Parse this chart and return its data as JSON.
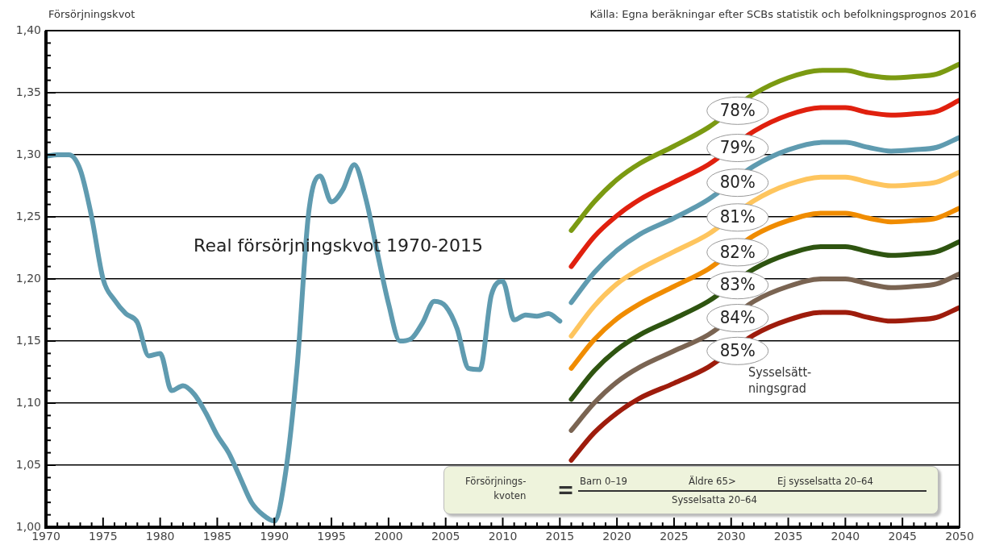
{
  "chart_data": {
    "type": "line",
    "ylabel": "Försörjningskvot",
    "legend_title": "Sysselsätt-\nningsgrad",
    "annotations": [
      "Källa: Egna beräkningar efter SCBs statistik och befolkningsprognos 2016",
      "Försörjnings-\nkvoten",
      "=",
      "Barn 0–19",
      "Äldre 65>",
      "Ej sysselsatta 20–64",
      "Sysselsatta 20–64"
    ],
    "xlim": [
      1970,
      2050
    ],
    "xticks": [
      1970,
      {
        "value": 1971,
        "label": null
      },
      {
        "value": 1972,
        "label": null
      },
      {
        "value": 1973,
        "label": null
      },
      {
        "value": 1974,
        "label": null
      },
      1975,
      {
        "value": 1976,
        "label": null
      },
      {
        "value": 1977,
        "label": null
      },
      {
        "value": 1978,
        "label": null
      },
      {
        "value": 1979,
        "label": null
      },
      1980,
      {
        "value": 1981,
        "label": null
      },
      {
        "value": 1982,
        "label": null
      },
      {
        "value": 1983,
        "label": null
      },
      {
        "value": 1984,
        "label": null
      },
      1985,
      {
        "value": 1986,
        "label": null
      },
      {
        "value": 1987,
        "label": null
      },
      {
        "value": 1988,
        "label": null
      },
      {
        "value": 1989,
        "label": null
      },
      1990,
      {
        "value": 1991,
        "label": null
      },
      {
        "value": 1992,
        "label": null
      },
      {
        "value": 1993,
        "label": null
      },
      {
        "value": 1994,
        "label": null
      },
      1995,
      {
        "value": 1996,
        "label": null
      },
      {
        "value": 1997,
        "label": null
      },
      {
        "value": 1998,
        "label": null
      },
      {
        "value": 1999,
        "label": null
      },
      2000,
      {
        "value": 2001,
        "label": null
      },
      {
        "value": 2002,
        "label": null
      },
      {
        "value": 2003,
        "label": null
      },
      {
        "value": 2004,
        "label": null
      },
      2005,
      {
        "value": 2006,
        "label": null
      },
      {
        "value": 2007,
        "label": null
      },
      {
        "value": 2008,
        "label": null
      },
      {
        "value": 2009,
        "label": null
      },
      2010,
      {
        "value": 2011,
        "label": null
      },
      {
        "value": 2012,
        "label": null
      },
      {
        "value": 2013,
        "label": null
      },
      {
        "value": 2014,
        "label": null
      },
      2015,
      {
        "value": 2016,
        "label": null
      },
      {
        "value": 2017,
        "label": null
      },
      {
        "value": 2018,
        "label": null
      },
      {
        "value": 2019,
        "label": null
      },
      2020,
      {
        "value": 2021,
        "label": null
      },
      {
        "value": 2022,
        "label": null
      },
      {
        "value": 2023,
        "label": null
      },
      {
        "value": 2024,
        "label": null
      },
      2025,
      {
        "value": 2026,
        "label": null
      },
      {
        "value": 2027,
        "label": null
      },
      {
        "value": 2028,
        "label": null
      },
      {
        "value": 2029,
        "label": null
      },
      2030,
      {
        "value": 2031,
        "label": null
      },
      {
        "value": 2032,
        "label": null
      },
      {
        "value": 2033,
        "label": null
      },
      {
        "value": 2034,
        "label": null
      },
      2035,
      {
        "value": 2036,
        "label": null
      },
      {
        "value": 2037,
        "label": null
      },
      {
        "value": 2038,
        "label": null
      },
      {
        "value": 2039,
        "label": null
      },
      2040,
      {
        "value": 2041,
        "label": null
      },
      {
        "value": 2042,
        "label": null
      },
      {
        "value": 2043,
        "label": null
      },
      {
        "value": 2044,
        "label": null
      },
      2045,
      {
        "value": 2046,
        "label": null
      },
      {
        "value": 2047,
        "label": null
      },
      {
        "value": 2048,
        "label": null
      },
      {
        "value": 2049,
        "label": null
      },
      2050
    ],
    "ylim": [
      1.0,
      1.4
    ],
    "yticks": [
      {
        "value": 1.0,
        "label": "1,00"
      },
      {
        "value": 1.01,
        "label": null
      },
      {
        "value": 1.02,
        "label": null
      },
      {
        "value": 1.03,
        "label": null
      },
      {
        "value": 1.04,
        "label": null
      },
      {
        "value": 1.05,
        "label": "1,05"
      },
      {
        "value": 1.06,
        "label": null
      },
      {
        "value": 1.07,
        "label": null
      },
      {
        "value": 1.08,
        "label": null
      },
      {
        "value": 1.09,
        "label": null
      },
      {
        "value": 1.1,
        "label": "1,10"
      },
      {
        "value": 1.11,
        "label": null
      },
      {
        "value": 1.12,
        "label": null
      },
      {
        "value": 1.13,
        "label": null
      },
      {
        "value": 1.14,
        "label": null
      },
      {
        "value": 1.15,
        "label": "1,15"
      },
      {
        "value": 1.16,
        "label": null
      },
      {
        "value": 1.17,
        "label": null
      },
      {
        "value": 1.18,
        "label": null
      },
      {
        "value": 1.19,
        "label": null
      },
      {
        "value": 1.2,
        "label": "1,20"
      },
      {
        "value": 1.21,
        "label": null
      },
      {
        "value": 1.22,
        "label": null
      },
      {
        "value": 1.23,
        "label": null
      },
      {
        "value": 1.24,
        "label": null
      },
      {
        "value": 1.25,
        "label": "1,25"
      },
      {
        "value": 1.26,
        "label": null
      },
      {
        "value": 1.27,
        "label": null
      },
      {
        "value": 1.28,
        "label": null
      },
      {
        "value": 1.29,
        "label": null
      },
      {
        "value": 1.3,
        "label": "1,30"
      },
      {
        "value": 1.31,
        "label": null
      },
      {
        "value": 1.32,
        "label": null
      },
      {
        "value": 1.33,
        "label": null
      },
      {
        "value": 1.34,
        "label": null
      },
      {
        "value": 1.35,
        "label": "1,35"
      },
      {
        "value": 1.36,
        "label": null
      },
      {
        "value": 1.37,
        "label": null
      },
      {
        "value": 1.38,
        "label": null
      },
      {
        "value": 1.39,
        "label": null
      },
      {
        "value": 1.4,
        "label": "1,40"
      }
    ],
    "grid": "y",
    "legend": false,
    "marker": "none",
    "line_style": "solid",
    "series": [
      {
        "name": "Real försörjningskvot 1970-2015",
        "color": "#5f9bb0",
        "x": [
          1970,
          1971,
          1972,
          1973,
          1974,
          1975,
          1976,
          1977,
          1978,
          1979,
          1980,
          1981,
          1982,
          1983,
          1984,
          1985,
          1986,
          1987,
          1988,
          1989,
          1990,
          1991,
          1992,
          1993,
          1994,
          1995,
          1996,
          1997,
          1998,
          1999,
          2000,
          2001,
          2002,
          2003,
          2004,
          2005,
          2006,
          2007,
          2008,
          2009,
          2010,
          2011,
          2012,
          2013,
          2014,
          2015
        ],
        "values": [
          1.299,
          1.3,
          1.3,
          1.288,
          1.25,
          1.2,
          1.183,
          1.172,
          1.165,
          1.138,
          1.14,
          1.11,
          1.114,
          1.107,
          1.092,
          1.074,
          1.06,
          1.04,
          1.02,
          1.01,
          1.005,
          1.045,
          1.13,
          1.253,
          1.283,
          1.262,
          1.272,
          1.292,
          1.265,
          1.222,
          1.18,
          1.15,
          1.152,
          1.165,
          1.182,
          1.178,
          1.16,
          1.128,
          1.127,
          1.187,
          1.198,
          1.167,
          1.171,
          1.17,
          1.172,
          1.166
        ]
      },
      {
        "name": "78%",
        "color": "#7b9a12",
        "x": [
          2016,
          2018,
          2020,
          2022,
          2025,
          2028,
          2030,
          2032,
          2035,
          2038,
          2040,
          2042,
          2044,
          2046,
          2048,
          2050
        ],
        "values": [
          1.239,
          1.262,
          1.28,
          1.293,
          1.307,
          1.322,
          null,
          1.349,
          1.362,
          1.368,
          1.368,
          1.364,
          1.362,
          1.363,
          1.365,
          1.373
        ]
      },
      {
        "name": "79%",
        "color": "#e0200e",
        "x": [
          2016,
          2018,
          2020,
          2022,
          2025,
          2028,
          2030,
          2032,
          2035,
          2038,
          2040,
          2042,
          2044,
          2046,
          2048,
          2050
        ],
        "values": [
          1.21,
          1.234,
          1.251,
          1.264,
          1.278,
          1.292,
          null,
          1.319,
          1.332,
          1.338,
          1.338,
          1.334,
          1.332,
          1.333,
          1.335,
          1.344
        ]
      },
      {
        "name": "80%",
        "color": "#5f9bb0",
        "x": [
          2016,
          2018,
          2020,
          2022,
          2025,
          2028,
          2030,
          2032,
          2035,
          2038,
          2040,
          2042,
          2044,
          2046,
          2048,
          2050
        ],
        "values": [
          1.181,
          1.205,
          1.223,
          1.236,
          1.249,
          1.264,
          null,
          1.291,
          1.304,
          1.31,
          1.31,
          1.306,
          1.303,
          1.304,
          1.306,
          1.314
        ]
      },
      {
        "name": "81%",
        "color": "#fec55e",
        "x": [
          2016,
          2018,
          2020,
          2022,
          2025,
          2028,
          2030,
          2032,
          2035,
          2038,
          2040,
          2042,
          2044,
          2046,
          2048,
          2050
        ],
        "values": [
          1.154,
          1.178,
          1.196,
          1.208,
          1.222,
          1.236,
          null,
          1.263,
          1.276,
          1.282,
          1.282,
          1.278,
          1.275,
          1.276,
          1.278,
          1.286
        ]
      },
      {
        "name": "82%",
        "color": "#f08c00",
        "x": [
          2016,
          2018,
          2020,
          2022,
          2025,
          2028,
          2030,
          2032,
          2035,
          2038,
          2040,
          2042,
          2044,
          2046,
          2048,
          2050
        ],
        "values": [
          1.128,
          1.151,
          1.168,
          1.18,
          1.194,
          1.208,
          null,
          1.235,
          1.247,
          1.253,
          1.253,
          1.249,
          1.246,
          1.247,
          1.249,
          1.257
        ]
      },
      {
        "name": "83%",
        "color": "#2e5410",
        "x": [
          2016,
          2018,
          2020,
          2022,
          2025,
          2028,
          2030,
          2032,
          2035,
          2038,
          2040,
          2042,
          2044,
          2046,
          2048,
          2050
        ],
        "values": [
          1.103,
          1.126,
          1.143,
          1.155,
          1.168,
          1.182,
          null,
          1.208,
          1.22,
          1.226,
          1.226,
          1.222,
          1.219,
          1.22,
          1.222,
          1.23
        ]
      },
      {
        "name": "84%",
        "color": "#7a6452",
        "x": [
          2016,
          2018,
          2020,
          2022,
          2025,
          2028,
          2030,
          2032,
          2035,
          2038,
          2040,
          2042,
          2044,
          2046,
          2048,
          2050
        ],
        "values": [
          1.078,
          1.1,
          1.117,
          1.129,
          1.142,
          1.155,
          null,
          1.182,
          1.194,
          1.2,
          1.2,
          1.196,
          1.193,
          1.194,
          1.196,
          1.204
        ]
      },
      {
        "name": "85%",
        "color": "#9e1c0c",
        "x": [
          2016,
          2018,
          2020,
          2022,
          2025,
          2028,
          2030,
          2032,
          2035,
          2038,
          2040,
          2042,
          2044,
          2046,
          2048,
          2050
        ],
        "values": [
          1.054,
          1.076,
          1.092,
          1.104,
          1.116,
          1.129,
          null,
          1.155,
          1.167,
          1.173,
          1.173,
          1.169,
          1.166,
          1.167,
          1.169,
          1.177
        ]
      }
    ]
  }
}
